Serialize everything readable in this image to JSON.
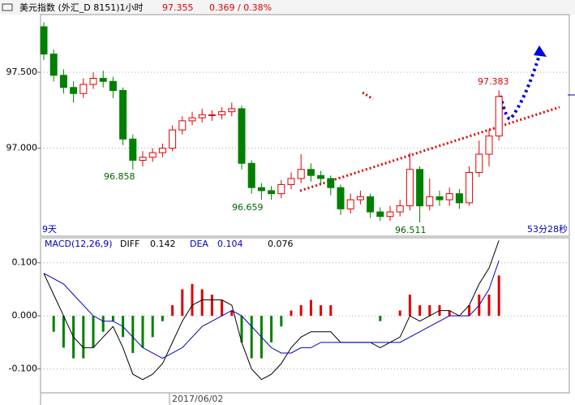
{
  "header": {
    "title": "美元指数 (外汇_D 8151)1小时",
    "price": "97.355",
    "change": "0.369 / 0.38%"
  },
  "chart_data": [
    {
      "type": "candlestick",
      "annotations": [
        "96.858",
        "96.659",
        "96.511",
        "97.383"
      ],
      "left_note": "9天",
      "right_note": "53分28秒",
      "colors": {
        "up": "#e00000",
        "down": "#008000"
      },
      "ylim": [
        96.42,
        97.88
      ],
      "yticks": [
        {
          "value": 97.5,
          "label": "97.500"
        },
        {
          "value": 97.0,
          "label": "97.000"
        }
      ],
      "open": [
        97.8,
        97.62,
        97.48,
        97.4,
        97.36,
        97.42,
        97.46,
        97.44,
        97.38,
        97.06,
        96.92,
        96.94,
        96.97,
        97.0,
        97.12,
        97.18,
        97.2,
        97.22,
        97.22,
        97.24,
        97.26,
        96.9,
        96.74,
        96.72,
        96.7,
        96.76,
        96.8,
        96.86,
        96.82,
        96.8,
        96.74,
        96.6,
        96.66,
        96.68,
        96.58,
        96.55,
        96.58,
        96.62,
        96.86,
        96.62,
        96.68,
        96.66,
        96.7,
        96.64,
        96.84,
        96.96,
        97.08
      ],
      "high": [
        97.83,
        97.65,
        97.52,
        97.44,
        97.46,
        97.5,
        97.51,
        97.47,
        97.4,
        97.09,
        96.98,
        97.0,
        97.03,
        97.15,
        97.21,
        97.24,
        97.26,
        97.25,
        97.27,
        97.3,
        97.28,
        96.92,
        96.77,
        96.75,
        96.79,
        96.84,
        96.96,
        96.9,
        96.85,
        96.82,
        96.76,
        96.7,
        96.72,
        96.7,
        96.61,
        96.62,
        96.66,
        96.97,
        96.88,
        96.8,
        96.72,
        96.74,
        96.73,
        96.88,
        97.05,
        97.12,
        97.38
      ],
      "low": [
        97.58,
        97.44,
        97.36,
        97.3,
        97.33,
        97.39,
        97.4,
        97.33,
        97.02,
        96.86,
        96.88,
        96.91,
        96.94,
        96.98,
        97.09,
        97.15,
        97.17,
        97.18,
        97.19,
        97.21,
        96.86,
        96.7,
        96.66,
        96.66,
        96.67,
        96.73,
        96.77,
        96.78,
        96.76,
        96.69,
        96.56,
        96.57,
        96.63,
        96.54,
        96.52,
        96.52,
        96.55,
        96.59,
        96.51,
        96.59,
        96.62,
        96.62,
        96.6,
        96.62,
        96.81,
        96.88,
        97.05
      ],
      "close": [
        97.62,
        97.48,
        97.4,
        97.36,
        97.42,
        97.46,
        97.44,
        97.38,
        97.06,
        96.92,
        96.94,
        96.97,
        97.0,
        97.12,
        97.18,
        97.2,
        97.22,
        97.22,
        97.24,
        97.26,
        96.9,
        96.74,
        96.72,
        96.7,
        96.76,
        96.8,
        96.86,
        96.82,
        96.8,
        96.74,
        96.6,
        96.66,
        96.68,
        96.58,
        96.55,
        96.58,
        96.62,
        96.86,
        96.62,
        96.68,
        96.66,
        96.7,
        96.64,
        96.84,
        96.96,
        97.08,
        97.34
      ]
    },
    {
      "type": "macd",
      "title": "MACD(12,26,9)",
      "x_label": "2017/06/02",
      "ylim": [
        -0.145,
        0.147
      ],
      "yticks": [
        {
          "value": 0.1,
          "label": "0.100"
        },
        {
          "value": 0,
          "label": "0.000"
        },
        {
          "value": -0.1,
          "label": "-0.100"
        }
      ],
      "histogram": {
        "name": "0.076",
        "up": "#e00000",
        "down": "#008000",
        "values": [
          0,
          -0.03,
          -0.06,
          -0.08,
          -0.08,
          -0.06,
          -0.03,
          -0.01,
          -0.04,
          -0.07,
          -0.06,
          -0.04,
          -0.01,
          0.02,
          0.05,
          0.06,
          0.05,
          0.04,
          0.03,
          0.01,
          -0.05,
          -0.08,
          -0.08,
          -0.05,
          -0.02,
          0.01,
          0.02,
          0.03,
          0.02,
          0.02,
          0,
          0,
          0,
          0,
          -0.01,
          0,
          0.01,
          0.04,
          0.02,
          0.02,
          0.02,
          0.01,
          0,
          0.02,
          0.04,
          0.04,
          0.076
        ]
      },
      "series": [
        {
          "name": "DIFF",
          "label_value": "0.142",
          "color": "#000000",
          "values": [
            0.08,
            0.04,
            0.0,
            -0.04,
            -0.06,
            -0.06,
            -0.04,
            -0.02,
            -0.06,
            -0.11,
            -0.12,
            -0.11,
            -0.09,
            -0.05,
            -0.01,
            0.02,
            0.03,
            0.03,
            0.03,
            0.02,
            -0.05,
            -0.1,
            -0.12,
            -0.11,
            -0.09,
            -0.06,
            -0.04,
            -0.03,
            -0.03,
            -0.03,
            -0.05,
            -0.05,
            -0.05,
            -0.05,
            -0.06,
            -0.05,
            -0.04,
            0.0,
            -0.01,
            0.0,
            0.01,
            0.01,
            0.0,
            0.02,
            0.06,
            0.09,
            0.142
          ]
        },
        {
          "name": "DEA",
          "label_value": "0.104",
          "color": "#0000c0",
          "values": [
            0.08,
            0.07,
            0.06,
            0.04,
            0.02,
            0.0,
            -0.01,
            -0.01,
            -0.02,
            -0.04,
            -0.06,
            -0.07,
            -0.08,
            -0.07,
            -0.06,
            -0.04,
            -0.02,
            -0.01,
            0.0,
            0.01,
            0.0,
            -0.02,
            -0.04,
            -0.06,
            -0.07,
            -0.07,
            -0.06,
            -0.06,
            -0.05,
            -0.05,
            -0.05,
            -0.05,
            -0.05,
            -0.05,
            -0.05,
            -0.05,
            -0.05,
            -0.04,
            -0.03,
            -0.02,
            -0.01,
            0.0,
            0.0,
            0.0,
            0.02,
            0.05,
            0.104
          ]
        }
      ]
    }
  ]
}
